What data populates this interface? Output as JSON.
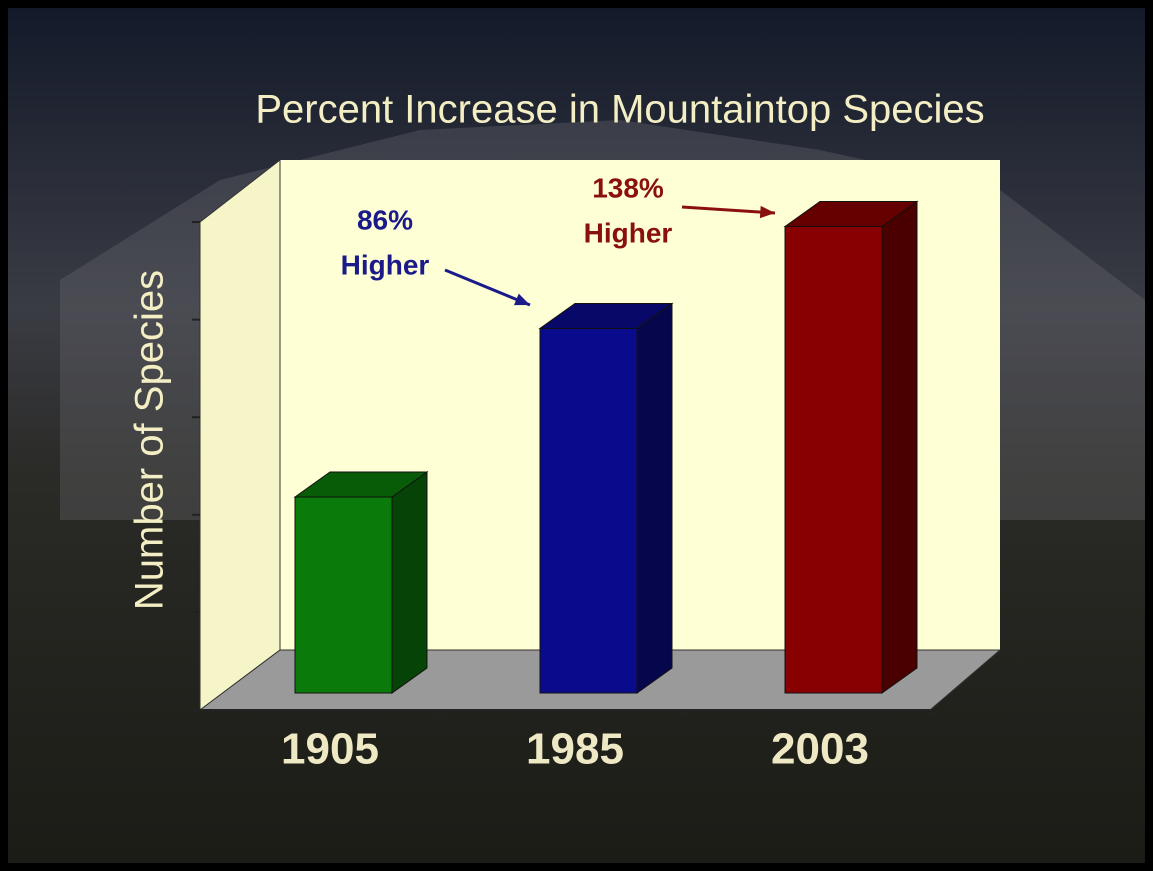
{
  "chart_data": {
    "type": "bar3d",
    "title": "Percent Increase in Mountaintop Species",
    "y_label": "Number of Species",
    "categories": [
      "1905",
      "1985",
      "2003"
    ],
    "values": [
      2,
      3.72,
      4.76
    ],
    "colors": [
      "#0a7a0a",
      "#0a0a8c",
      "#880000"
    ],
    "ylim": [
      0,
      5
    ],
    "yticks": [
      0,
      1,
      2,
      3,
      4,
      5
    ],
    "annotations": [
      {
        "lines": [
          "86%",
          "Higher"
        ],
        "color": "#1a1a8a"
      },
      {
        "lines": [
          "138%",
          "Higher"
        ],
        "color": "#8a1010"
      }
    ]
  }
}
